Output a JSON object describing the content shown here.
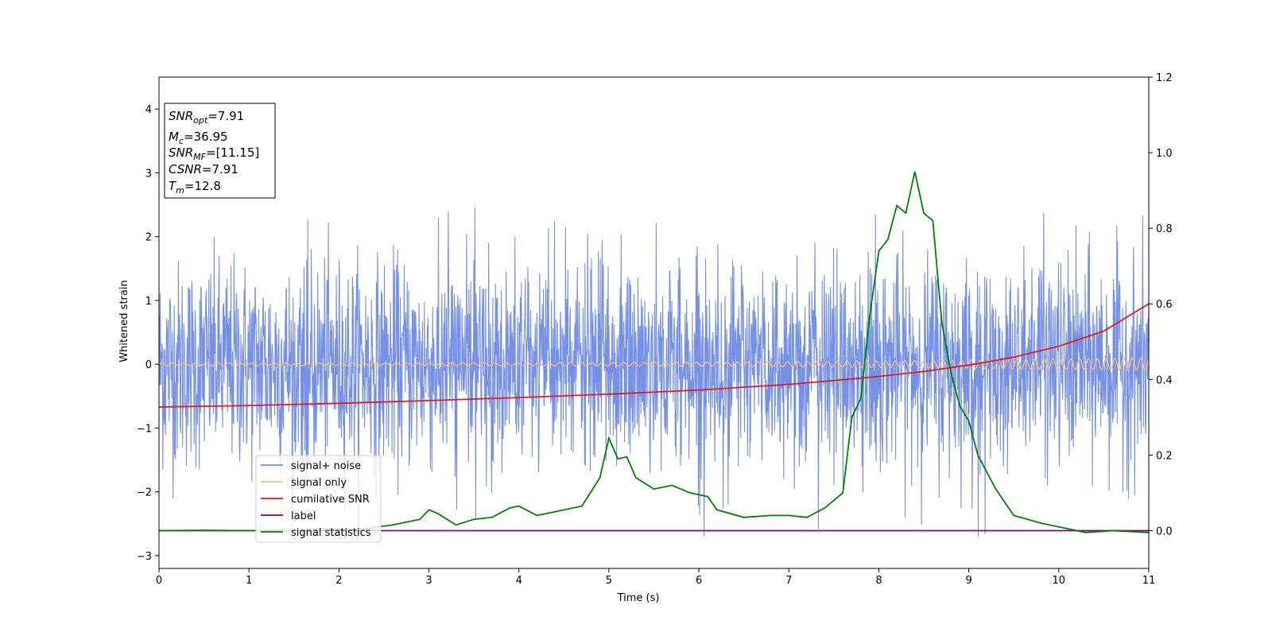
{
  "chart_data": {
    "type": "line",
    "xlabel": "Time (s)",
    "ylabel": "Whitened strain",
    "xlim": [
      0,
      11
    ],
    "ylim_left": [
      -3.2,
      4.5
    ],
    "ylim_right": [
      -0.1,
      1.2
    ],
    "xticks": [
      "0",
      "1",
      "2",
      "3",
      "4",
      "5",
      "6",
      "7",
      "8",
      "9",
      "10",
      "11"
    ],
    "yticks_left": [
      "−3",
      "−2",
      "−1",
      "0",
      "1",
      "2",
      "3",
      "4"
    ],
    "yticks_right": [
      "0.0",
      "0.2",
      "0.4",
      "0.6",
      "0.8",
      "1.0",
      "1.2"
    ],
    "grid": false,
    "legend_position": "lower-left",
    "info_box": {
      "lines": [
        {
          "var": "SNR",
          "sub": "opt",
          "value": "=7.91"
        },
        {
          "var": "M",
          "sub": "c",
          "value": "=36.95"
        },
        {
          "var": "SNR",
          "sub": "MF",
          "value": "=[11.15]"
        },
        {
          "var": "CSNR",
          "sub": "",
          "value": "=7.91"
        },
        {
          "var": "T",
          "sub": "m",
          "value": "=12.8"
        }
      ]
    },
    "series": [
      {
        "name": "signal+ noise",
        "axis": "left",
        "color": "#6d8ae6",
        "style": "noise",
        "sigma": 0.8,
        "peak_max": 2.5,
        "peak_min": -2.75,
        "note_values": "dense noisy whitened strain, roughly between -2.7 and 2.5"
      },
      {
        "name": "signal only",
        "axis": "left",
        "color": "#f5c07a",
        "style": "chirp",
        "amplitude_start": 0.02,
        "amplitude_end": 0.1
      },
      {
        "name": "cumilative SNR",
        "axis": "right",
        "color": "#e31a1c",
        "x": [
          0,
          1,
          2,
          3,
          4,
          5,
          6,
          7,
          7.5,
          8,
          8.5,
          9,
          9.5,
          10,
          10.5,
          11
        ],
        "y": [
          0.327,
          0.331,
          0.337,
          0.344,
          0.352,
          0.361,
          0.372,
          0.387,
          0.397,
          0.408,
          0.421,
          0.438,
          0.459,
          0.488,
          0.528,
          0.6
        ]
      },
      {
        "name": "label",
        "axis": "right",
        "color": "#800080",
        "x": [
          0,
          11
        ],
        "y": [
          0,
          0
        ]
      },
      {
        "name": "signal statistics",
        "axis": "right",
        "color": "#008000",
        "x": [
          0,
          0.5,
          1,
          1.5,
          1.9,
          2.2,
          2.6,
          2.9,
          3.0,
          3.1,
          3.3,
          3.5,
          3.7,
          3.9,
          4.0,
          4.2,
          4.4,
          4.7,
          4.9,
          5.0,
          5.1,
          5.2,
          5.3,
          5.5,
          5.7,
          5.9,
          6.1,
          6.2,
          6.5,
          6.8,
          7.0,
          7.2,
          7.4,
          7.6,
          7.7,
          7.8,
          7.9,
          8.0,
          8.1,
          8.2,
          8.3,
          8.4,
          8.5,
          8.6,
          8.7,
          8.8,
          8.9,
          9.0,
          9.1,
          9.3,
          9.5,
          9.8,
          10.0,
          10.3,
          10.6,
          11.0
        ],
        "y": [
          0.0,
          0.001,
          0.0,
          0.001,
          0.005,
          0.002,
          0.015,
          0.03,
          0.055,
          0.045,
          0.015,
          0.03,
          0.035,
          0.06,
          0.065,
          0.04,
          0.05,
          0.065,
          0.14,
          0.245,
          0.19,
          0.195,
          0.14,
          0.11,
          0.12,
          0.1,
          0.09,
          0.055,
          0.035,
          0.04,
          0.04,
          0.035,
          0.06,
          0.1,
          0.3,
          0.35,
          0.57,
          0.74,
          0.77,
          0.86,
          0.84,
          0.95,
          0.84,
          0.82,
          0.55,
          0.42,
          0.33,
          0.29,
          0.2,
          0.11,
          0.04,
          0.02,
          0.01,
          -0.005,
          0.0,
          -0.005
        ]
      }
    ]
  }
}
